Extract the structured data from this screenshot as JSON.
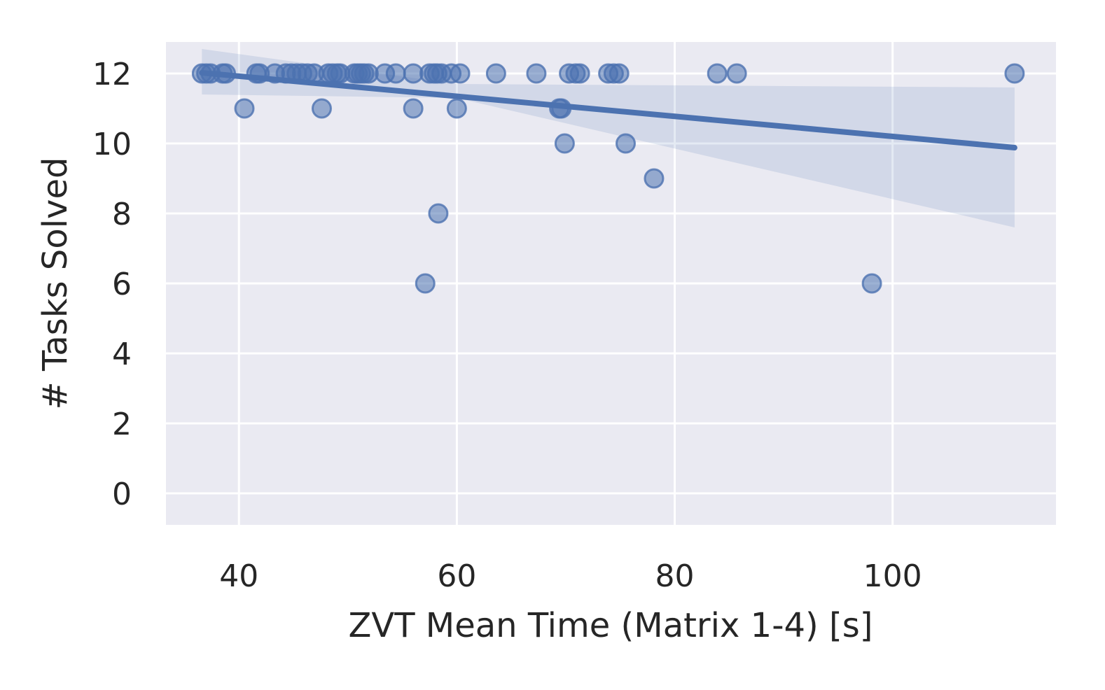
{
  "chart_data": {
    "type": "scatter",
    "title": "",
    "xlabel": "ZVT Mean Time (Matrix 1-4) [s]",
    "ylabel": "# Tasks Solved",
    "xlim": [
      33.3,
      115.0
    ],
    "ylim": [
      -0.9,
      12.9
    ],
    "xticks": [
      40,
      60,
      80,
      100
    ],
    "yticks": [
      0,
      2,
      4,
      6,
      8,
      10,
      12
    ],
    "grid": true,
    "legend": "none",
    "colors": {
      "background": "#eaeaf2",
      "grid": "#ffffff",
      "points": "#4c72b0",
      "line": "#4c72b0",
      "band": "#4c72b0"
    },
    "points": [
      {
        "x": 36.6,
        "y": 12
      },
      {
        "x": 37.0,
        "y": 12
      },
      {
        "x": 37.4,
        "y": 12
      },
      {
        "x": 38.5,
        "y": 12
      },
      {
        "x": 38.8,
        "y": 12
      },
      {
        "x": 40.5,
        "y": 11
      },
      {
        "x": 41.6,
        "y": 12
      },
      {
        "x": 41.9,
        "y": 12
      },
      {
        "x": 43.3,
        "y": 12
      },
      {
        "x": 44.3,
        "y": 12
      },
      {
        "x": 44.8,
        "y": 12
      },
      {
        "x": 45.3,
        "y": 12
      },
      {
        "x": 45.8,
        "y": 12
      },
      {
        "x": 46.3,
        "y": 12
      },
      {
        "x": 46.9,
        "y": 12
      },
      {
        "x": 47.6,
        "y": 11
      },
      {
        "x": 48.2,
        "y": 12
      },
      {
        "x": 48.6,
        "y": 12
      },
      {
        "x": 49.0,
        "y": 12
      },
      {
        "x": 49.3,
        "y": 12
      },
      {
        "x": 50.6,
        "y": 12
      },
      {
        "x": 50.9,
        "y": 12
      },
      {
        "x": 51.2,
        "y": 12
      },
      {
        "x": 51.5,
        "y": 12
      },
      {
        "x": 51.9,
        "y": 12
      },
      {
        "x": 53.4,
        "y": 12
      },
      {
        "x": 54.4,
        "y": 12
      },
      {
        "x": 56.0,
        "y": 12
      },
      {
        "x": 56.0,
        "y": 11
      },
      {
        "x": 57.1,
        "y": 6
      },
      {
        "x": 57.5,
        "y": 12
      },
      {
        "x": 57.9,
        "y": 12
      },
      {
        "x": 58.2,
        "y": 12
      },
      {
        "x": 58.3,
        "y": 8
      },
      {
        "x": 58.6,
        "y": 12
      },
      {
        "x": 59.5,
        "y": 12
      },
      {
        "x": 60.0,
        "y": 11
      },
      {
        "x": 60.3,
        "y": 12
      },
      {
        "x": 63.6,
        "y": 12
      },
      {
        "x": 67.3,
        "y": 12
      },
      {
        "x": 69.4,
        "y": 11
      },
      {
        "x": 69.6,
        "y": 11
      },
      {
        "x": 69.9,
        "y": 10
      },
      {
        "x": 70.3,
        "y": 12
      },
      {
        "x": 70.9,
        "y": 12
      },
      {
        "x": 71.3,
        "y": 12
      },
      {
        "x": 73.9,
        "y": 12
      },
      {
        "x": 74.4,
        "y": 12
      },
      {
        "x": 74.9,
        "y": 12
      },
      {
        "x": 75.5,
        "y": 10
      },
      {
        "x": 78.1,
        "y": 9
      },
      {
        "x": 83.9,
        "y": 12
      },
      {
        "x": 85.7,
        "y": 12
      },
      {
        "x": 98.1,
        "y": 6
      },
      {
        "x": 111.2,
        "y": 12
      }
    ],
    "regression": {
      "x": [
        36.6,
        111.2
      ],
      "y": [
        12.02,
        9.88
      ]
    },
    "confidence_band": {
      "x": [
        36.6,
        60.0,
        111.2
      ],
      "upper": [
        12.7,
        11.7,
        11.6
      ],
      "lower": [
        11.4,
        11.3,
        7.6
      ]
    }
  }
}
